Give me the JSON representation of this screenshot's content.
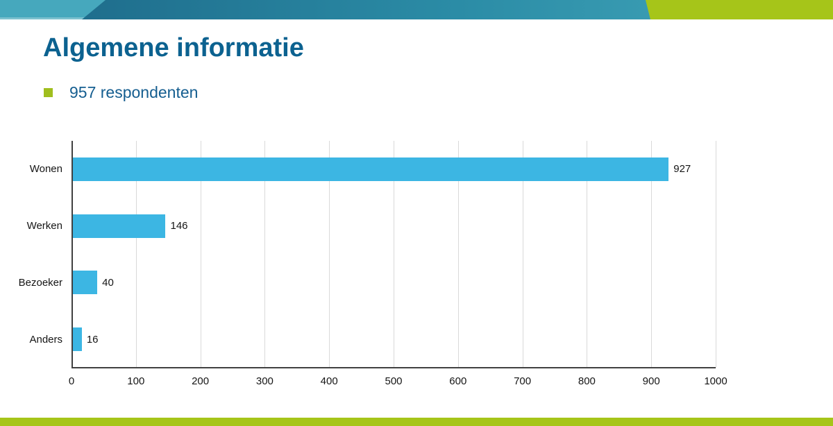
{
  "slide": {
    "title": "Algemene informatie",
    "bullet": {
      "text": "957 respondenten"
    }
  },
  "colors": {
    "title_blue": "#0C6290",
    "bullet_text_blue": "#155E90",
    "bullet_marker_green": "#A0BE1E",
    "bar_blue": "#3CB6E3",
    "axis_line": "#404040",
    "gridline": "#D9D9D9",
    "band_light_teal": "#46A8BD",
    "band_dark_teal_start": "#1F6E8D",
    "band_dark_teal_mid": "#2B8CA6",
    "band_dark_teal_end": "#44A8BC",
    "band_green": "#A6C519",
    "band_bottom_strip": "#8FC9D6"
  },
  "chart_data": {
    "type": "bar",
    "orientation": "horizontal",
    "title": "",
    "xlabel": "",
    "ylabel": "",
    "categories": [
      "Wonen",
      "Werken",
      "Bezoeker",
      "Anders"
    ],
    "values": [
      927,
      146,
      40,
      16
    ],
    "data_labels": [
      "927",
      "146",
      "40",
      "16"
    ],
    "xlim": [
      0,
      1000
    ],
    "x_ticks": [
      0,
      100,
      200,
      300,
      400,
      500,
      600,
      700,
      800,
      900,
      1000
    ],
    "grid": true,
    "legend": false
  }
}
